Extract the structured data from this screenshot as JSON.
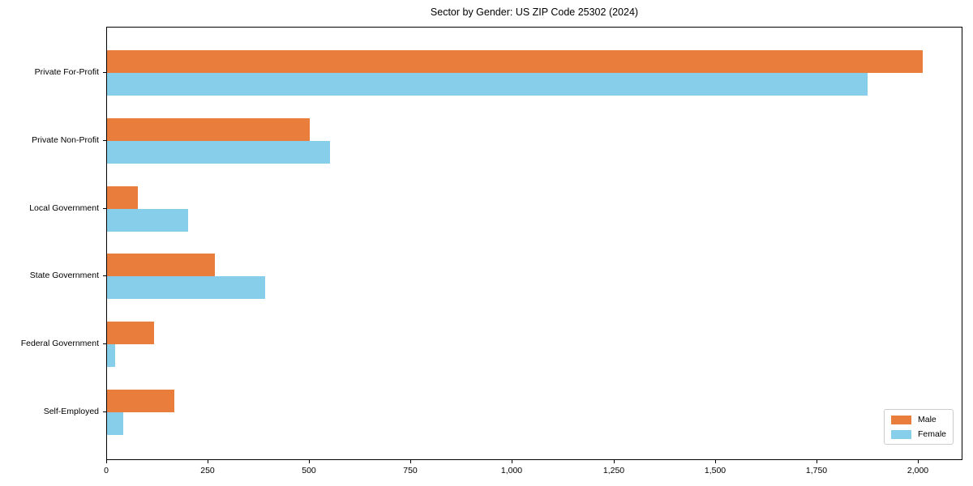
{
  "chart_data": {
    "type": "bar",
    "orientation": "horizontal",
    "title": "Sector by Gender: US ZIP Code 25302 (2024)",
    "categories": [
      "Private For-Profit",
      "Private Non-Profit",
      "Local Government",
      "State Government",
      "Federal Government",
      "Self-Employed"
    ],
    "series": [
      {
        "name": "Male",
        "color": "#e87d3c",
        "values": [
          2010,
          500,
          75,
          265,
          115,
          165
        ]
      },
      {
        "name": "Female",
        "color": "#87ceeb",
        "values": [
          1875,
          550,
          200,
          390,
          20,
          40
        ]
      }
    ],
    "xlabel": "",
    "ylabel": "",
    "xlim": [
      0,
      2110
    ],
    "x_ticks": [
      0,
      250,
      500,
      750,
      1000,
      1250,
      1500,
      1750,
      2000
    ],
    "x_tick_labels": [
      "0",
      "250",
      "500",
      "750",
      "1,000",
      "1,250",
      "1,500",
      "1,750",
      "2,000"
    ],
    "grid": false,
    "legend_position": "lower right",
    "frame_color": "#000000",
    "background_color": "#ffffff"
  }
}
